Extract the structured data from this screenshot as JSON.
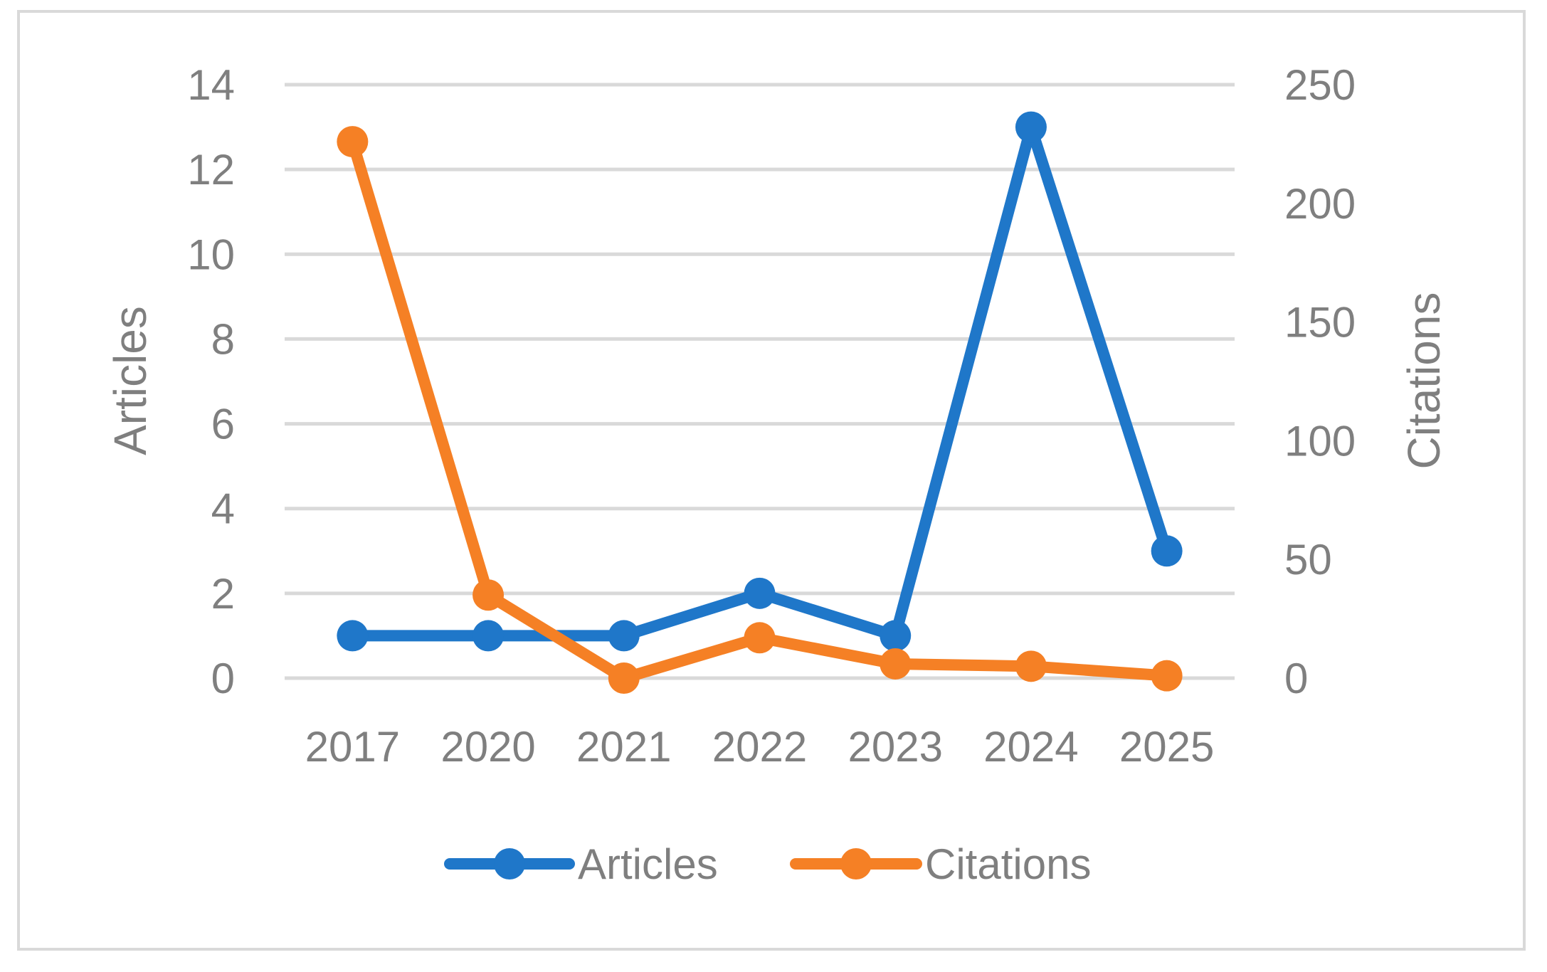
{
  "chart_data": {
    "type": "line",
    "title": "",
    "categories": [
      "2017",
      "2020",
      "2021",
      "2022",
      "2023",
      "2024",
      "2025"
    ],
    "series": [
      {
        "name": "Articles",
        "axis": "left",
        "color": "#1f77c9",
        "values": [
          1,
          1,
          1,
          2,
          1,
          13,
          3
        ]
      },
      {
        "name": "Citations",
        "axis": "right",
        "color": "#f58025",
        "values": [
          226,
          35,
          0,
          17,
          6,
          5,
          1
        ]
      }
    ],
    "y_left": {
      "label": "Articles",
      "ylim": [
        0,
        14
      ],
      "ticks": [
        "0",
        "2",
        "4",
        "6",
        "8",
        "10",
        "12",
        "14"
      ]
    },
    "y_right": {
      "label": "Citations",
      "ylim": [
        0,
        250
      ],
      "ticks": [
        "0",
        "50",
        "100",
        "150",
        "200",
        "250"
      ]
    },
    "grid": true,
    "legend": "bottom",
    "gridline_color": "#d9d9d9",
    "text_color": "#7f7f7f"
  }
}
